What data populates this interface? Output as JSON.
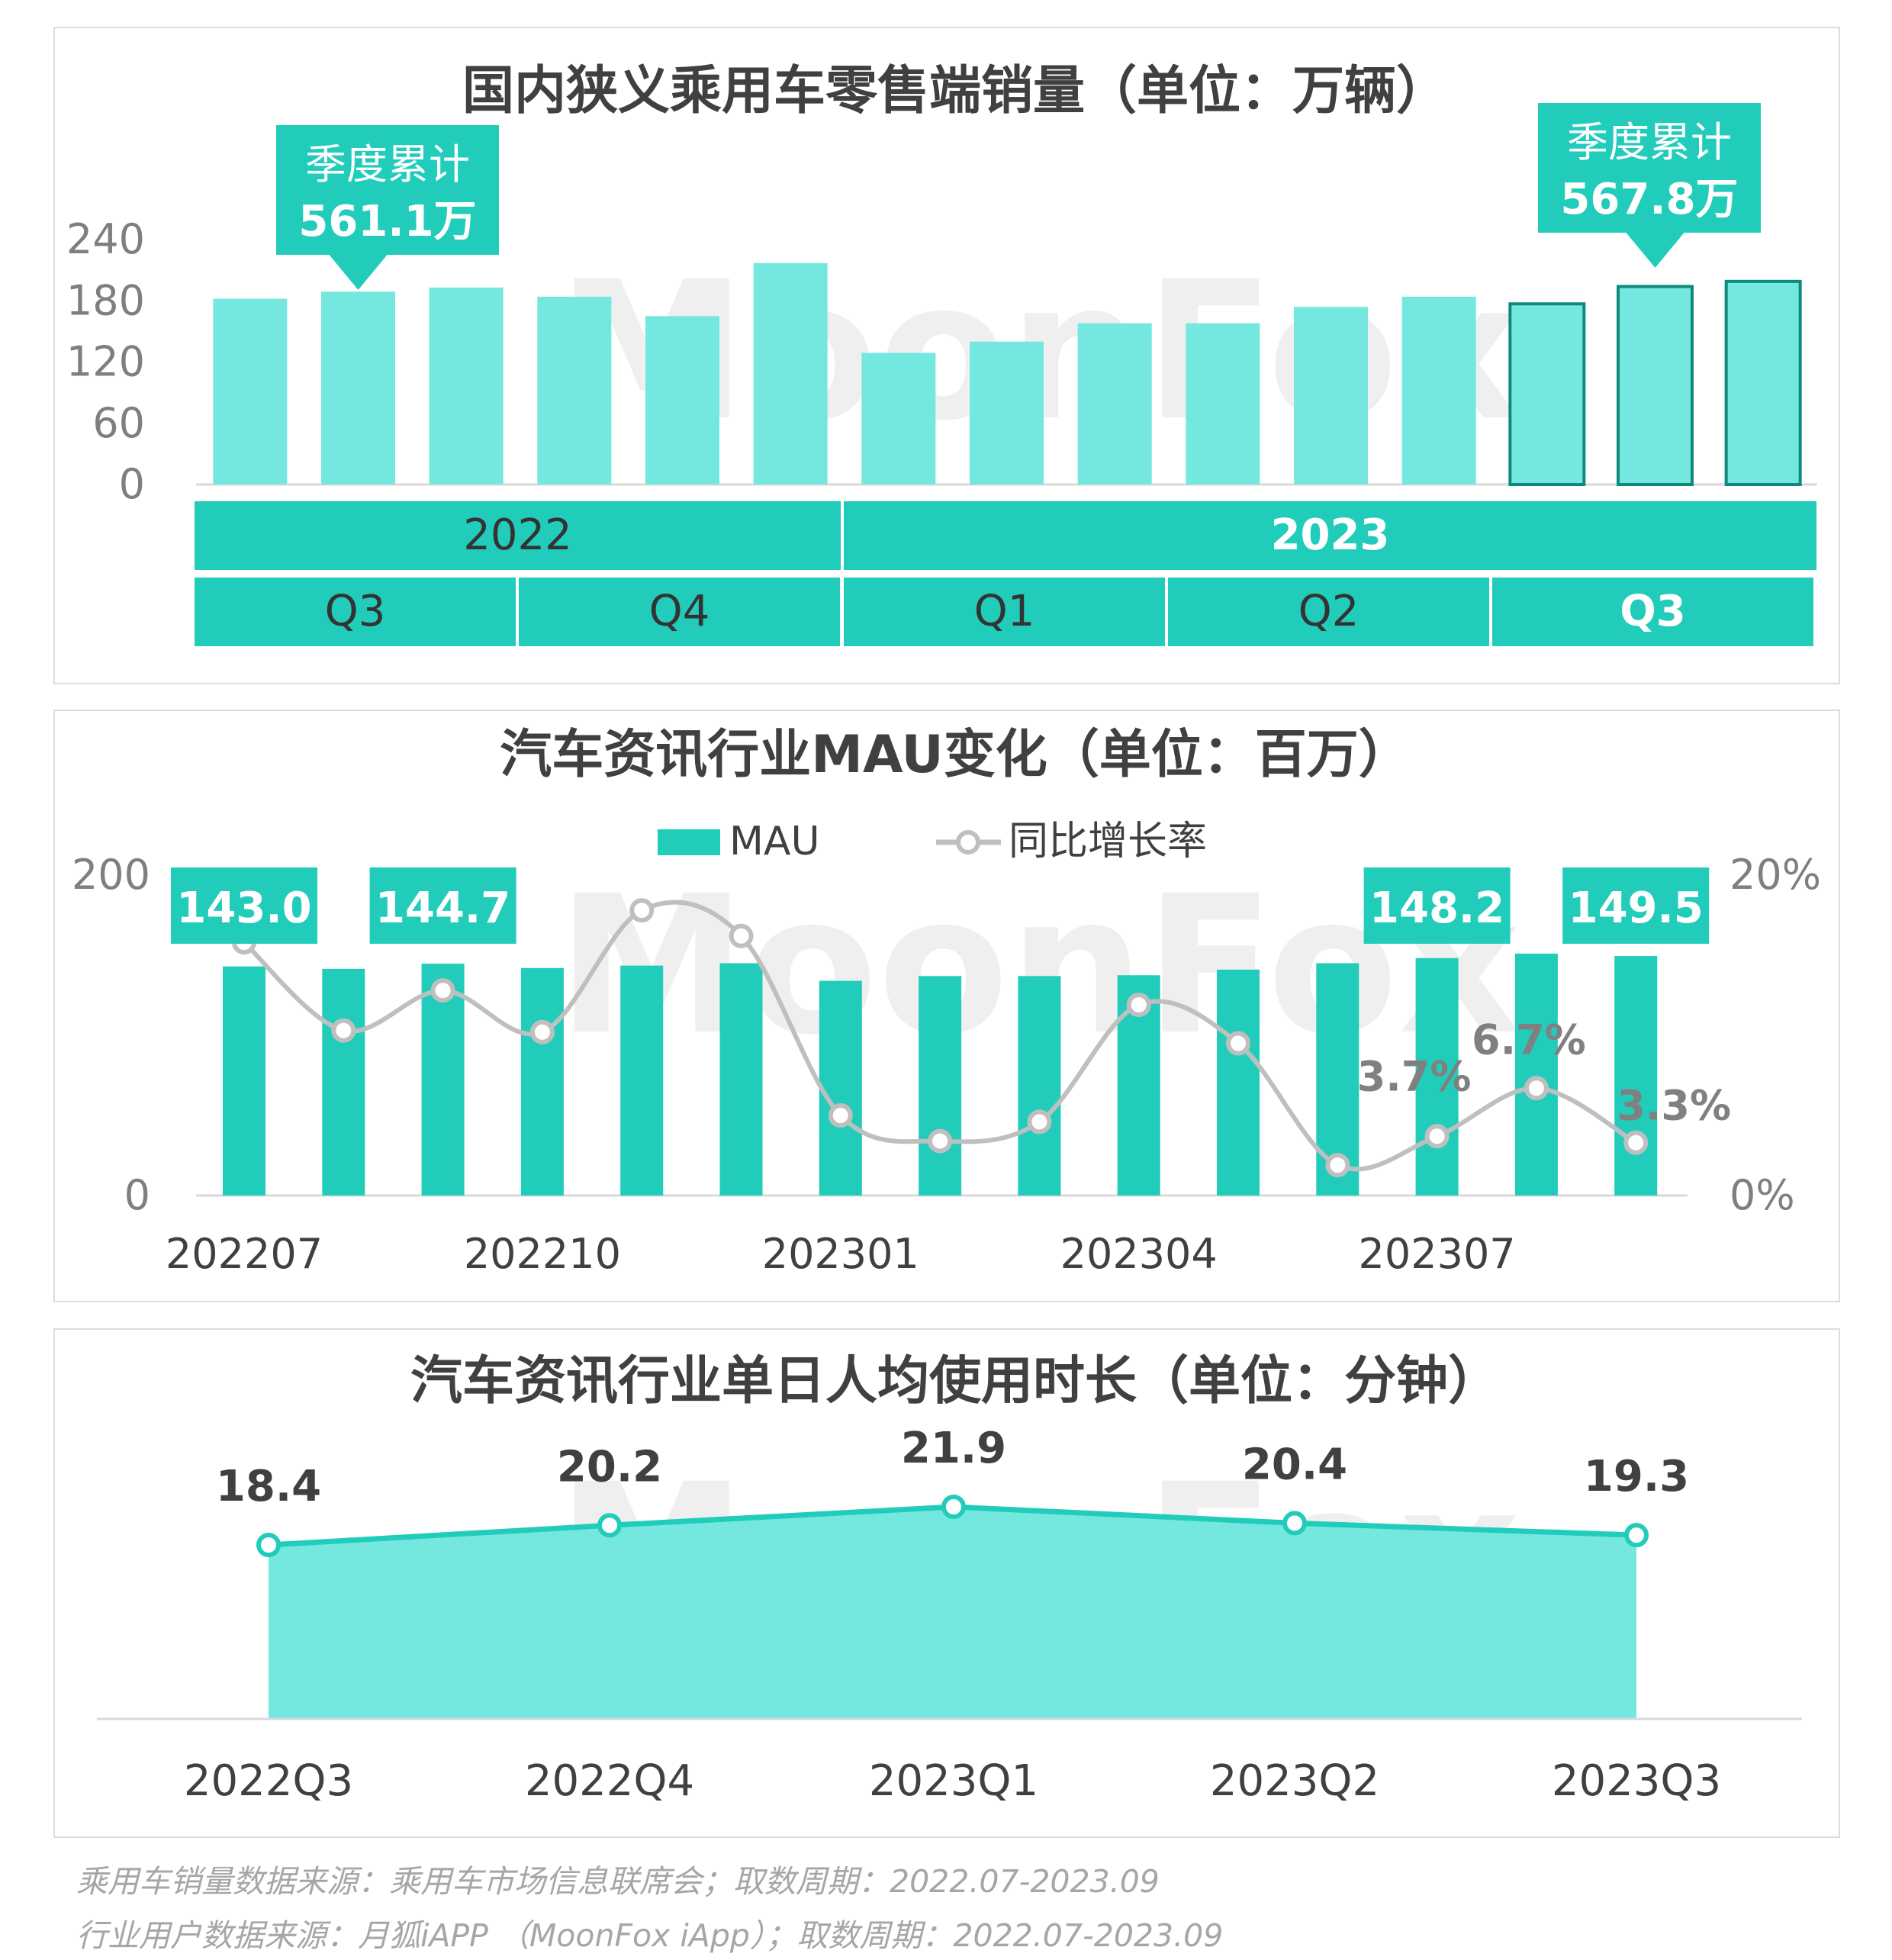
{
  "watermark": "MoonFox",
  "colors": {
    "teal": "#22CCBB",
    "light_teal": "#74E8DE",
    "dark_teal": "#0E8A7D",
    "gray_line": "#BFBFBF",
    "text_dark": "#404040",
    "axis_text": "#7F7F7F"
  },
  "chart_data": [
    {
      "type": "bar",
      "title": "国内狭义乘用车零售端销量（单位：万辆）",
      "yticks": [
        "240",
        "180",
        "120",
        "60",
        "0"
      ],
      "ylim": [
        0,
        240
      ],
      "values": [
        182,
        189,
        193,
        184,
        165,
        217,
        129,
        140,
        158,
        158,
        174,
        184,
        177,
        194,
        199
      ],
      "years": [
        {
          "label": "2022",
          "bold": false
        },
        {
          "label": "2023",
          "bold": true
        }
      ],
      "quarters": [
        {
          "label": "Q3",
          "bold": false
        },
        {
          "label": "Q4",
          "bold": false
        },
        {
          "label": "Q1",
          "bold": false
        },
        {
          "label": "Q2",
          "bold": false
        },
        {
          "label": "Q3",
          "bold": true
        }
      ],
      "callouts": [
        {
          "line1": "季度累计",
          "line2": "561.1万"
        },
        {
          "line1": "季度累计",
          "line2": "567.8万"
        }
      ]
    },
    {
      "type": "bar+line",
      "title": "汽车资讯行业MAU变化（单位：百万）",
      "legend": {
        "bar": "MAU",
        "line": "同比增长率"
      },
      "y_left_ticks": [
        "200",
        "0"
      ],
      "y_left_lim": [
        0,
        200
      ],
      "y_right_ticks": [
        "20%",
        "0%"
      ],
      "y_right_lim": [
        0,
        20
      ],
      "x": [
        "202207",
        "202208",
        "202209",
        "202210",
        "202211",
        "202212",
        "202301",
        "202302",
        "202303",
        "202304",
        "202305",
        "202306",
        "202307",
        "202308",
        "202309"
      ],
      "x_tick_labels": [
        "202207",
        "202210",
        "202301",
        "202304",
        "202307"
      ],
      "mau": [
        143.0,
        141.5,
        144.7,
        142.0,
        143.5,
        145.0,
        134.0,
        137.0,
        137.0,
        137.5,
        141.0,
        145.0,
        148.2,
        151.0,
        149.5
      ],
      "growth": [
        15.8,
        10.3,
        12.8,
        10.2,
        17.8,
        16.2,
        5.0,
        3.4,
        4.6,
        11.9,
        9.5,
        1.9,
        3.7,
        6.7,
        3.3
      ],
      "mau_labels": [
        "143.0",
        "144.7",
        "148.2",
        "149.5"
      ],
      "growth_labels": [
        "3.7%",
        "6.7%",
        "3.3%"
      ]
    },
    {
      "type": "area",
      "title": "汽车资讯行业单日人均使用时长（单位：分钟）",
      "x": [
        "2022Q3",
        "2022Q4",
        "2023Q1",
        "2023Q2",
        "2023Q3"
      ],
      "values": [
        18.4,
        20.2,
        21.9,
        20.4,
        19.3
      ],
      "value_labels": [
        "18.4",
        "20.2",
        "21.9",
        "20.4",
        "19.3"
      ]
    }
  ],
  "footer": {
    "line1": "乘用车销量数据来源：乘用车市场信息联席会；取数周期：2022.07-2023.09",
    "line2": "行业用户数据来源：月狐iAPP （MoonFox iApp）；取数周期：2022.07-2023.09"
  }
}
